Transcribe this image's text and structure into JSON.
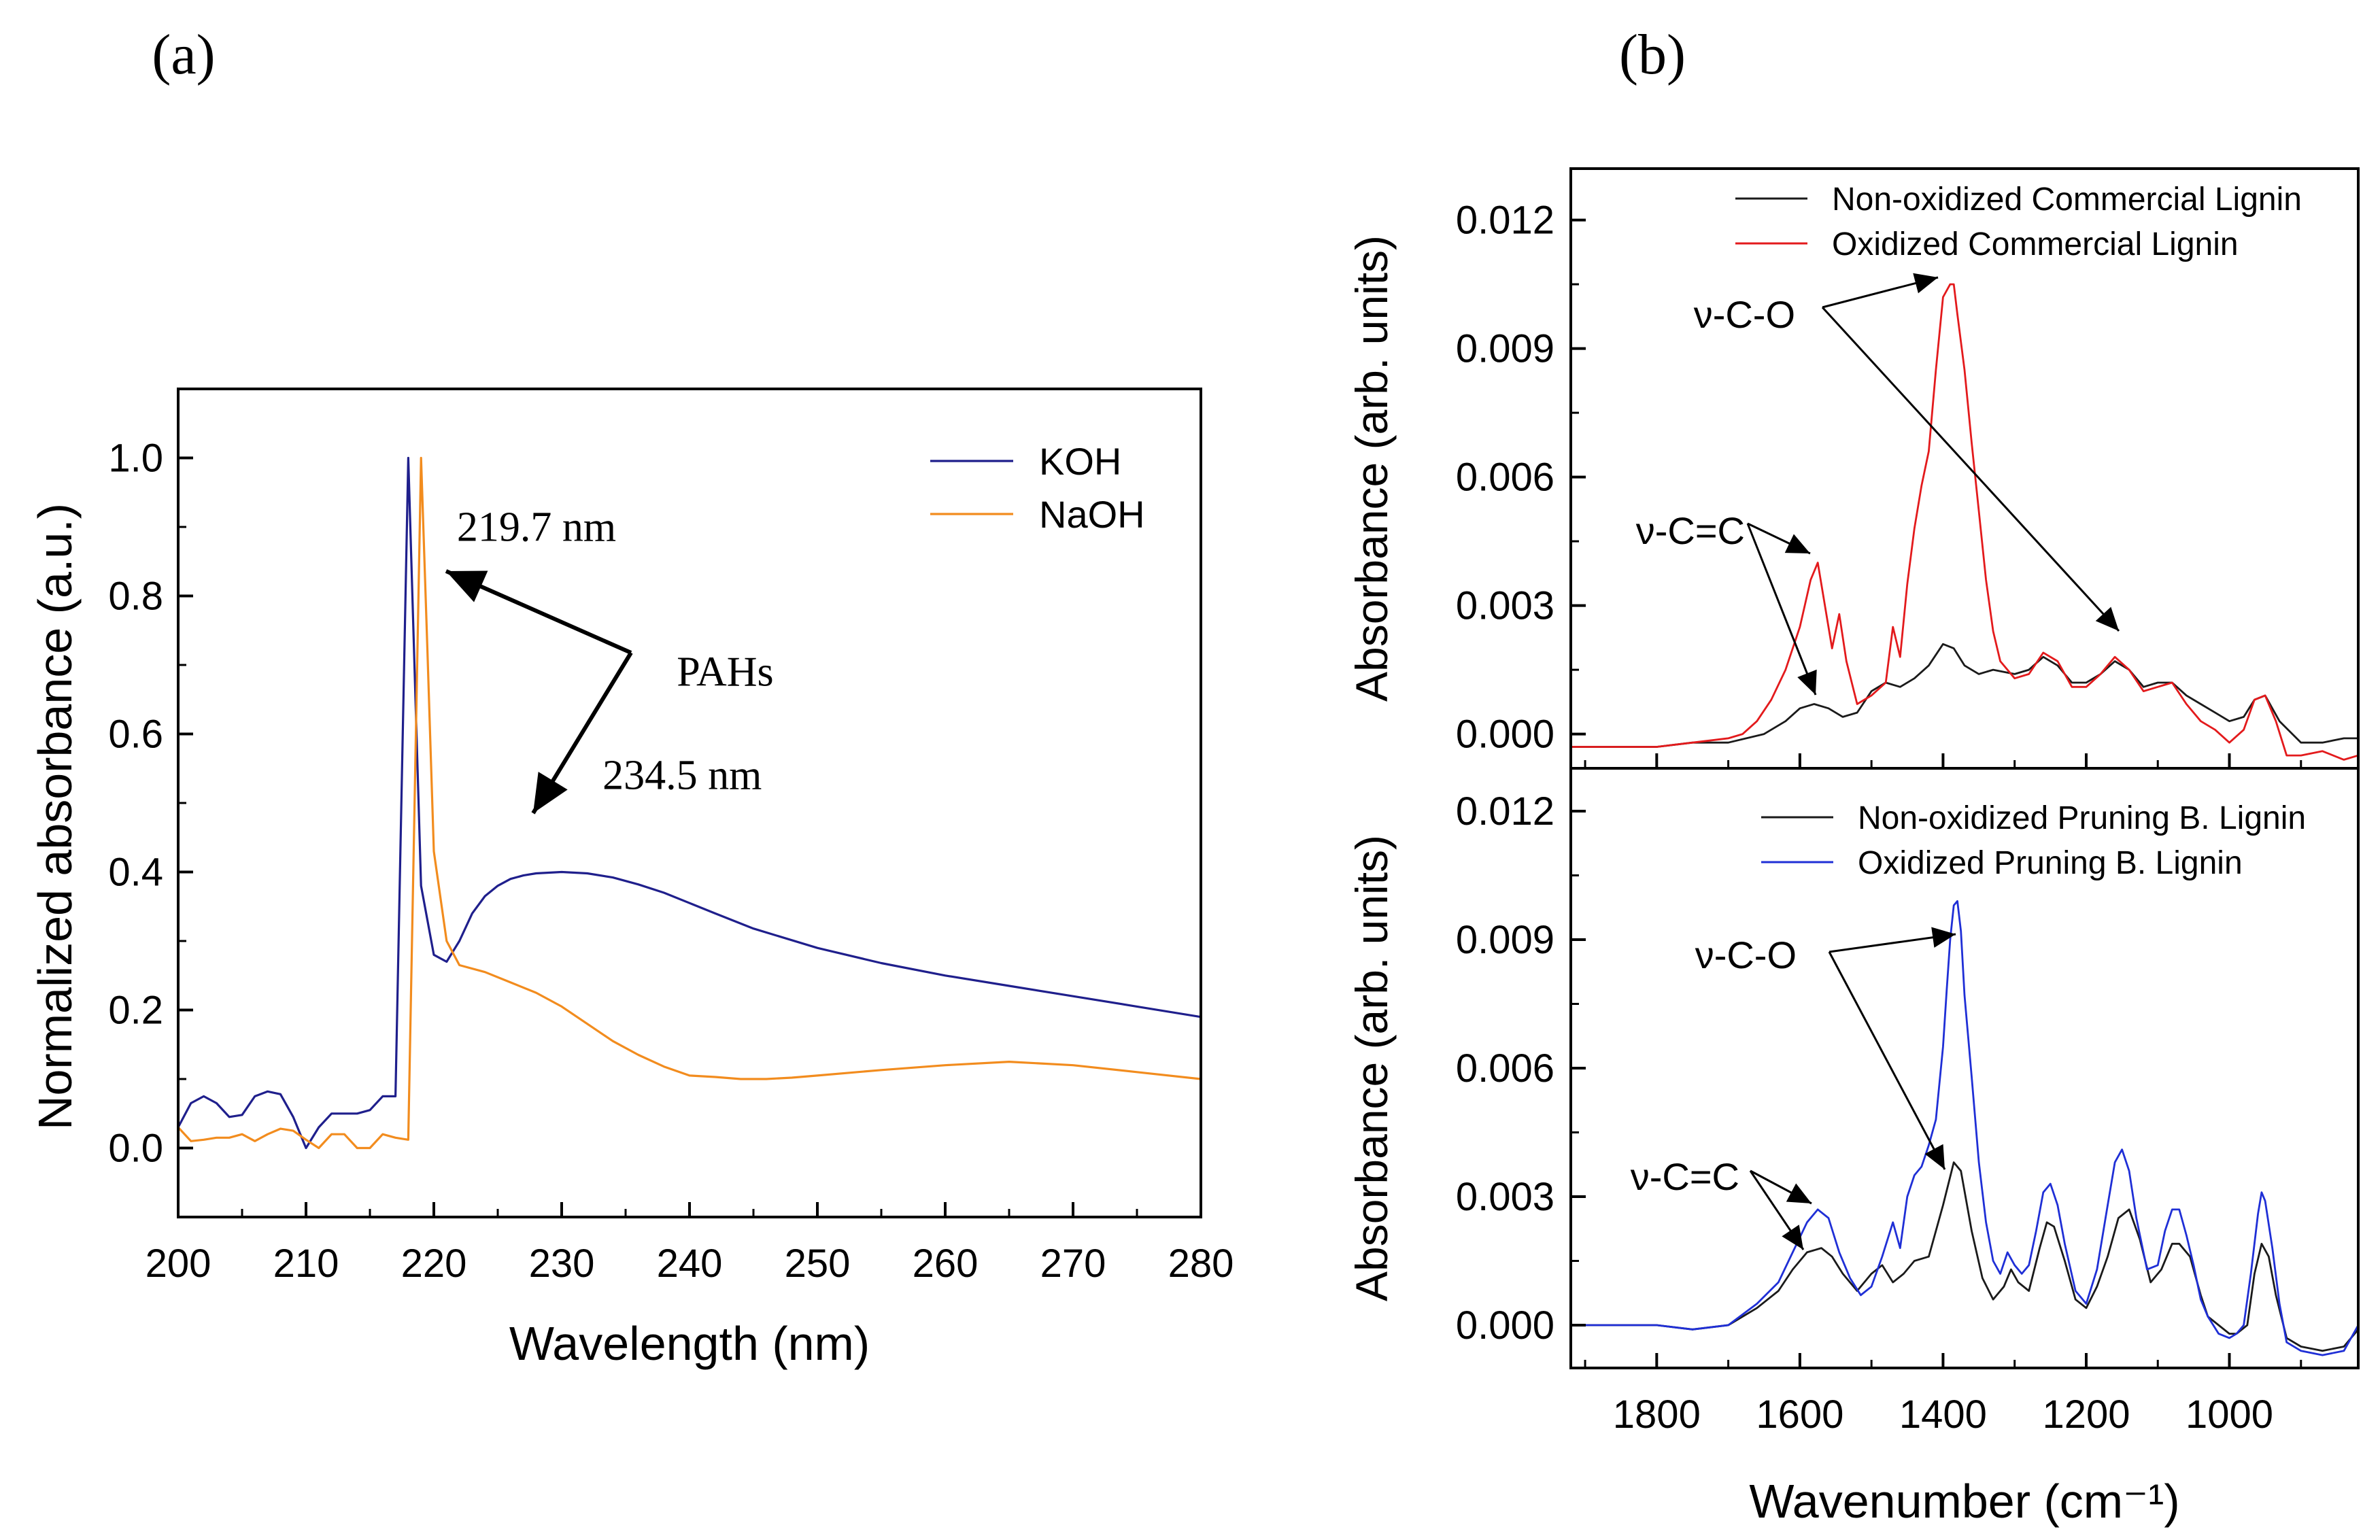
{
  "panels": {
    "a_label": "(a)",
    "b_label": "(b)"
  },
  "chart_data": [
    {
      "type": "line",
      "panel": "(a)",
      "title": "",
      "xlabel": "Wavelength (nm)",
      "ylabel": "Normalized absorbance (a.u.)",
      "xlim": [
        200,
        280
      ],
      "ylim": [
        -0.1,
        1.1
      ],
      "xticks": [
        "200",
        "210",
        "220",
        "230",
        "240",
        "250",
        "260",
        "270",
        "280"
      ],
      "yticks": [
        "0.0",
        "0.2",
        "0.4",
        "0.6",
        "0.8",
        "1.0"
      ],
      "legend_position": "top-right",
      "series": [
        {
          "name": "KOH",
          "color": "#1f1f8c",
          "x": [
            200,
            201,
            202,
            203,
            204,
            205,
            206,
            207,
            208,
            209,
            210,
            211,
            212,
            213,
            214,
            215,
            216,
            217,
            218,
            219,
            220,
            221,
            222,
            223,
            224,
            225,
            226,
            227,
            228,
            230,
            232,
            234,
            236,
            238,
            240,
            242,
            245,
            250,
            255,
            260,
            265,
            270,
            275,
            280
          ],
          "values": [
            0.03,
            0.065,
            0.075,
            0.065,
            0.045,
            0.048,
            0.075,
            0.082,
            0.078,
            0.045,
            0.0,
            0.03,
            0.05,
            0.05,
            0.05,
            0.055,
            0.075,
            0.075,
            1.0,
            0.38,
            0.28,
            0.27,
            0.3,
            0.34,
            0.365,
            0.38,
            0.39,
            0.395,
            0.398,
            0.4,
            0.398,
            0.392,
            0.382,
            0.37,
            0.355,
            0.34,
            0.318,
            0.29,
            0.268,
            0.25,
            0.235,
            0.22,
            0.205,
            0.19
          ]
        },
        {
          "name": "NaOH",
          "color": "#f28c1e",
          "x": [
            200,
            201,
            202,
            203,
            204,
            205,
            206,
            207,
            208,
            209,
            210,
            211,
            212,
            213,
            214,
            215,
            216,
            217,
            218,
            219,
            219.5,
            220,
            221,
            222,
            224,
            226,
            228,
            230,
            232,
            234,
            236,
            238,
            240,
            242,
            244,
            246,
            248,
            250,
            255,
            260,
            265,
            270,
            275,
            280
          ],
          "values": [
            0.03,
            0.01,
            0.012,
            0.015,
            0.015,
            0.02,
            0.01,
            0.02,
            0.028,
            0.025,
            0.012,
            0.0,
            0.02,
            0.02,
            0.0,
            0.0,
            0.02,
            0.015,
            0.012,
            1.0,
            0.72,
            0.43,
            0.3,
            0.265,
            0.255,
            0.24,
            0.225,
            0.205,
            0.18,
            0.155,
            0.135,
            0.118,
            0.105,
            0.103,
            0.1,
            0.1,
            0.102,
            0.105,
            0.113,
            0.12,
            0.125,
            0.12,
            0.11,
            0.1
          ]
        }
      ],
      "annotations": [
        {
          "text": "219.7 nm",
          "x": 221.8,
          "y": 0.88
        },
        {
          "text": "234.5 nm",
          "x": 233.2,
          "y": 0.52
        },
        {
          "text": "PAHs",
          "x": 239.0,
          "y": 0.67
        }
      ]
    },
    {
      "type": "line",
      "panel": "(b) top",
      "xlabel": "",
      "ylabel": "Absorbance (arb. units)",
      "xlim": [
        1920,
        820
      ],
      "ylim": [
        -0.0008,
        0.0132
      ],
      "yticks": [
        "0.000",
        "0.003",
        "0.006",
        "0.009",
        "0.012"
      ],
      "legend_position": "top-right",
      "series": [
        {
          "name": "Non-oxidized Commercial Lignin",
          "color": "#1a1a1a",
          "x": [
            1920,
            1850,
            1800,
            1750,
            1700,
            1650,
            1620,
            1600,
            1580,
            1560,
            1540,
            1520,
            1500,
            1480,
            1460,
            1440,
            1420,
            1400,
            1385,
            1370,
            1350,
            1330,
            1300,
            1280,
            1260,
            1240,
            1220,
            1200,
            1180,
            1160,
            1140,
            1120,
            1100,
            1080,
            1060,
            1040,
            1020,
            1000,
            980,
            965,
            950,
            930,
            900,
            870,
            840,
            820
          ],
          "values": [
            -0.0003,
            -0.0003,
            -0.0003,
            -0.0002,
            -0.0002,
            0.0,
            0.0003,
            0.0006,
            0.0007,
            0.0006,
            0.0004,
            0.0005,
            0.001,
            0.0012,
            0.0011,
            0.0013,
            0.0016,
            0.0021,
            0.002,
            0.0016,
            0.0014,
            0.0015,
            0.0014,
            0.0015,
            0.0018,
            0.0016,
            0.0012,
            0.0012,
            0.0014,
            0.0017,
            0.0015,
            0.0011,
            0.0012,
            0.0012,
            0.0009,
            0.0007,
            0.0005,
            0.0003,
            0.0004,
            0.0008,
            0.0009,
            0.0003,
            -0.0002,
            -0.0002,
            -0.0001,
            -0.0001
          ]
        },
        {
          "name": "Oxidized Commercial Lignin",
          "color": "#e31a1c",
          "x": [
            1920,
            1850,
            1800,
            1750,
            1700,
            1680,
            1660,
            1640,
            1620,
            1600,
            1585,
            1575,
            1565,
            1555,
            1545,
            1535,
            1520,
            1500,
            1480,
            1470,
            1460,
            1450,
            1440,
            1430,
            1420,
            1410,
            1400,
            1390,
            1385,
            1380,
            1370,
            1360,
            1350,
            1340,
            1330,
            1320,
            1300,
            1280,
            1260,
            1240,
            1220,
            1200,
            1180,
            1160,
            1140,
            1120,
            1100,
            1080,
            1060,
            1040,
            1020,
            1000,
            980,
            965,
            950,
            935,
            920,
            900,
            870,
            840,
            820
          ],
          "values": [
            -0.0003,
            -0.0003,
            -0.0003,
            -0.0002,
            -0.0001,
            0.0,
            0.0003,
            0.0008,
            0.0015,
            0.0025,
            0.0036,
            0.004,
            0.003,
            0.002,
            0.0028,
            0.0017,
            0.0007,
            0.0009,
            0.0012,
            0.0025,
            0.0018,
            0.0035,
            0.0048,
            0.0058,
            0.0066,
            0.0085,
            0.0102,
            0.0105,
            0.0105,
            0.0098,
            0.0085,
            0.0068,
            0.0052,
            0.0036,
            0.0024,
            0.0017,
            0.0013,
            0.0014,
            0.0019,
            0.0017,
            0.0011,
            0.0011,
            0.0014,
            0.0018,
            0.0015,
            0.001,
            0.0011,
            0.0012,
            0.0007,
            0.0003,
            0.0001,
            -0.0002,
            0.0001,
            0.0008,
            0.0009,
            0.0003,
            -0.0005,
            -0.0005,
            -0.0004,
            -0.0006,
            -0.0005
          ]
        }
      ],
      "annotations": [
        {
          "text": "ν-C-O"
        },
        {
          "text": "ν-C=C"
        }
      ]
    },
    {
      "type": "line",
      "panel": "(b) bottom",
      "xlabel": "Wavenumber (cm⁻¹)",
      "ylabel": "Absorbance (arb. units)",
      "xlim": [
        1920,
        820
      ],
      "ylim": [
        -0.001,
        0.013
      ],
      "xticks": [
        "1800",
        "1600",
        "1400",
        "1200",
        "1000"
      ],
      "yticks": [
        "0.000",
        "0.003",
        "0.006",
        "0.009",
        "0.012"
      ],
      "legend_position": "top-right",
      "series": [
        {
          "name": "Non-oxidized Pruning B. Lignin",
          "color": "#1a1a1a",
          "x": [
            1920,
            1850,
            1800,
            1750,
            1700,
            1660,
            1630,
            1610,
            1590,
            1570,
            1555,
            1540,
            1520,
            1500,
            1485,
            1470,
            1455,
            1440,
            1420,
            1400,
            1385,
            1375,
            1360,
            1345,
            1330,
            1315,
            1305,
            1295,
            1280,
            1265,
            1255,
            1245,
            1230,
            1215,
            1200,
            1185,
            1170,
            1155,
            1140,
            1125,
            1110,
            1095,
            1080,
            1070,
            1055,
            1040,
            1030,
            1015,
            1000,
            990,
            975,
            965,
            955,
            945,
            935,
            920,
            900,
            870,
            840,
            820
          ],
          "values": [
            0.0,
            0.0,
            0.0,
            -0.0001,
            0.0,
            0.0004,
            0.0008,
            0.0013,
            0.0017,
            0.0018,
            0.0016,
            0.0012,
            0.0008,
            0.0012,
            0.0014,
            0.001,
            0.0012,
            0.0015,
            0.0016,
            0.0028,
            0.0038,
            0.0036,
            0.0022,
            0.0011,
            0.0006,
            0.0009,
            0.0013,
            0.001,
            0.0008,
            0.0018,
            0.0024,
            0.0023,
            0.0015,
            0.0006,
            0.0004,
            0.0009,
            0.0016,
            0.0025,
            0.0027,
            0.002,
            0.001,
            0.0013,
            0.0019,
            0.0019,
            0.0016,
            0.0007,
            0.0002,
            0.0,
            -0.0002,
            -0.0002,
            0.0,
            0.0012,
            0.0019,
            0.0016,
            0.0007,
            -0.0003,
            -0.0005,
            -0.0006,
            -0.0005,
            -0.0001
          ]
        },
        {
          "name": "Oxidized Pruning B. Lignin",
          "color": "#1f2fd6",
          "x": [
            1920,
            1850,
            1800,
            1750,
            1700,
            1660,
            1630,
            1610,
            1590,
            1575,
            1560,
            1545,
            1530,
            1515,
            1500,
            1485,
            1470,
            1460,
            1450,
            1440,
            1430,
            1420,
            1410,
            1400,
            1395,
            1390,
            1385,
            1380,
            1375,
            1370,
            1360,
            1350,
            1340,
            1330,
            1320,
            1310,
            1300,
            1290,
            1280,
            1270,
            1260,
            1250,
            1240,
            1230,
            1215,
            1200,
            1185,
            1170,
            1160,
            1150,
            1140,
            1130,
            1115,
            1100,
            1090,
            1080,
            1070,
            1060,
            1050,
            1040,
            1030,
            1015,
            1000,
            990,
            980,
            970,
            960,
            955,
            950,
            940,
            930,
            920,
            900,
            870,
            840,
            820
          ],
          "values": [
            0.0,
            0.0,
            0.0,
            -0.0001,
            0.0,
            0.0005,
            0.001,
            0.0017,
            0.0024,
            0.0027,
            0.0025,
            0.0017,
            0.0011,
            0.0007,
            0.0009,
            0.0016,
            0.0024,
            0.0018,
            0.003,
            0.0035,
            0.0037,
            0.0042,
            0.0048,
            0.0065,
            0.0078,
            0.009,
            0.0098,
            0.0099,
            0.0092,
            0.0077,
            0.0058,
            0.0038,
            0.0024,
            0.0015,
            0.0012,
            0.0017,
            0.0014,
            0.0012,
            0.0014,
            0.0022,
            0.0031,
            0.0033,
            0.0028,
            0.0019,
            0.0008,
            0.0005,
            0.0013,
            0.0028,
            0.0038,
            0.0041,
            0.0036,
            0.0025,
            0.0013,
            0.0014,
            0.0022,
            0.0027,
            0.0027,
            0.0021,
            0.0014,
            0.0006,
            0.0002,
            -0.0002,
            -0.0003,
            -0.0002,
            0.0,
            0.0012,
            0.0026,
            0.0031,
            0.0029,
            0.0018,
            0.0005,
            -0.0004,
            -0.0006,
            -0.0007,
            -0.0006,
            0.0
          ]
        }
      ],
      "annotations": [
        {
          "text": "ν-C-O"
        },
        {
          "text": "ν-C=C"
        }
      ]
    }
  ]
}
